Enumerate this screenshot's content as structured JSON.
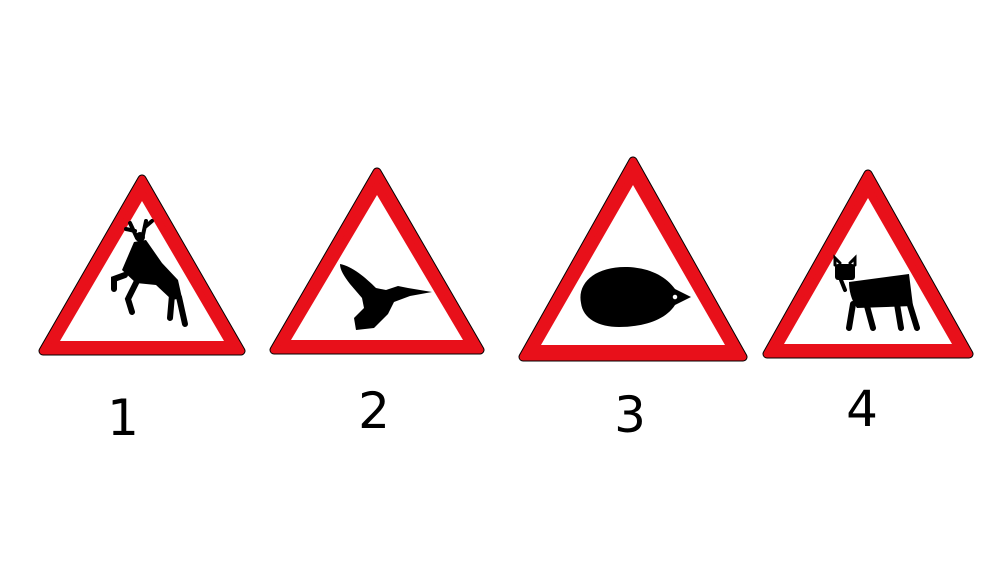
{
  "colors": {
    "border": "#e8101a",
    "field": "#ffffff",
    "symbol": "#000000",
    "label": "#000000"
  },
  "signs": [
    {
      "label": "1",
      "icon": "deer-icon"
    },
    {
      "label": "2",
      "icon": "bird-icon"
    },
    {
      "label": "3",
      "icon": "hedgehog-icon"
    },
    {
      "label": "4",
      "icon": "cow-icon"
    }
  ]
}
